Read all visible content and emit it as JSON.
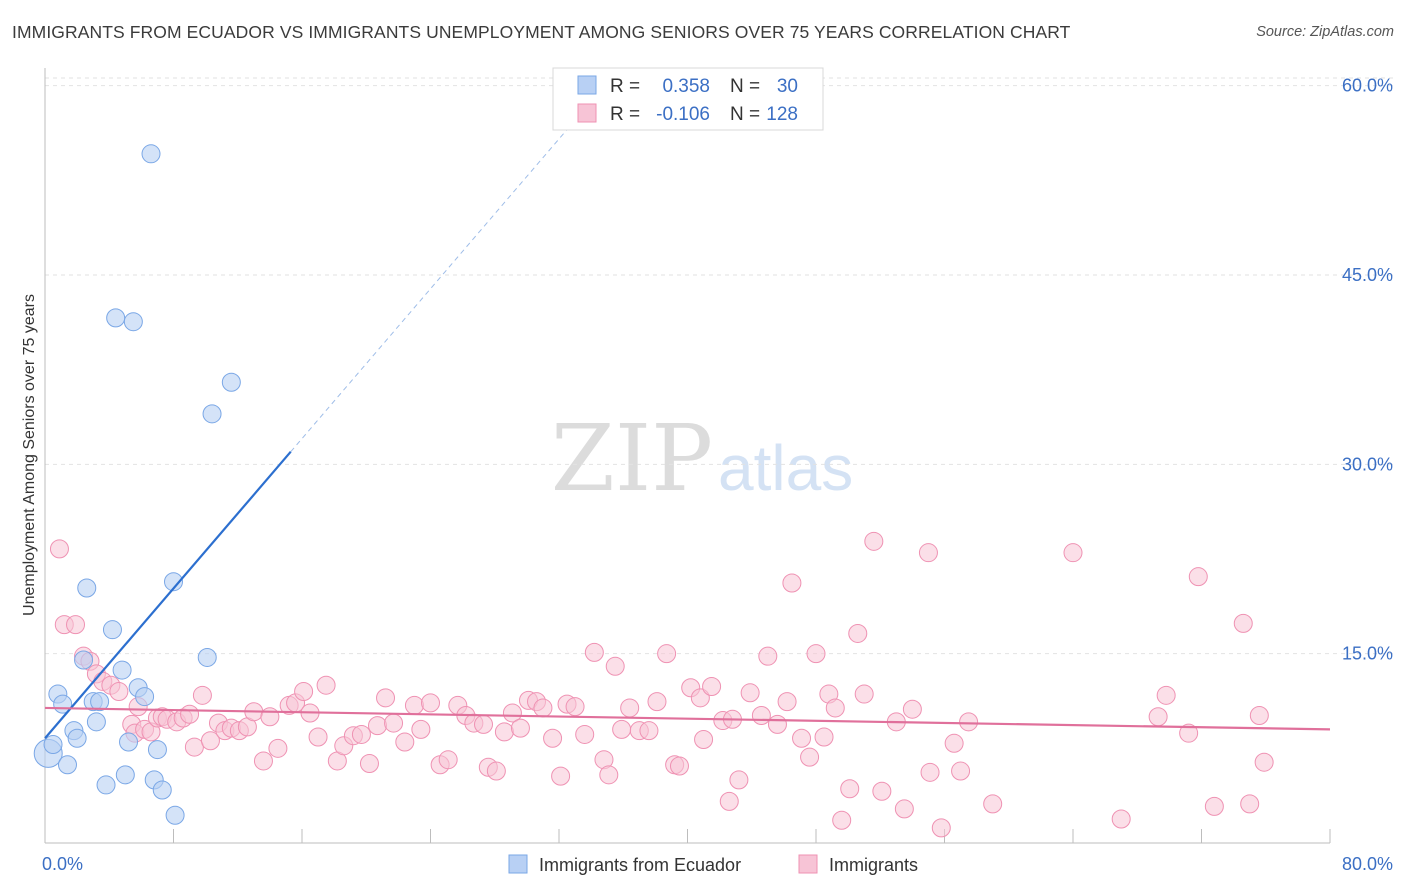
{
  "header": {
    "title": "IMMIGRANTS FROM ECUADOR VS IMMIGRANTS UNEMPLOYMENT AMONG SENIORS OVER 75 YEARS CORRELATION CHART",
    "source": "Source: ZipAtlas.com"
  },
  "watermark": {
    "zip": "ZIP",
    "atlas": "atlas"
  },
  "colors": {
    "blue_fill": "#b8d0f4",
    "blue_stroke": "#7aa7e6",
    "blue_line": "#2c6fcf",
    "pink_fill": "#f7c4d6",
    "pink_stroke": "#ef92b3",
    "pink_line": "#e0709b",
    "tick_text": "#3b6fc4",
    "grid": "#e2e2e2"
  },
  "stats_box": {
    "rows": [
      {
        "r_label": "R =",
        "r_value": "0.358",
        "n_label": "N =",
        "n_value": "30"
      },
      {
        "r_label": "R =",
        "r_value": "-0.106",
        "n_label": "N =",
        "n_value": "128"
      }
    ]
  },
  "chart_data": {
    "type": "scatter",
    "title": "IMMIGRANTS FROM ECUADOR VS IMMIGRANTS UNEMPLOYMENT AMONG SENIORS OVER 75 YEARS CORRELATION CHART",
    "xlabel": "",
    "ylabel": "Unemployment Among Seniors over 75 years",
    "xlim": [
      0,
      80
    ],
    "ylim": [
      0,
      60
    ],
    "x_tick_labels": {
      "min": "0.0%",
      "max": "80.0%"
    },
    "y_ticks": [
      15,
      30,
      45,
      60
    ],
    "y_tick_labels": [
      "15.0%",
      "30.0%",
      "45.0%",
      "60.0%"
    ],
    "legend": {
      "position": "bottom-center",
      "entries": [
        "Immigrants from Ecuador",
        "Immigrants"
      ]
    },
    "series": [
      {
        "name": "Immigrants from Ecuador",
        "trend": {
          "x0": 0,
          "y0": 8.3,
          "x1": 15.3,
          "y1": 31.0,
          "dash_to_x": 33,
          "r": 0.358,
          "n": 30
        },
        "points": [
          [
            0.2,
            7.1
          ],
          [
            0.5,
            7.8
          ],
          [
            0.8,
            11.8
          ],
          [
            1.1,
            11.0
          ],
          [
            1.4,
            6.2
          ],
          [
            1.8,
            8.9
          ],
          [
            2.0,
            8.3
          ],
          [
            2.4,
            14.5
          ],
          [
            2.6,
            20.2
          ],
          [
            3.0,
            11.2
          ],
          [
            3.2,
            9.6
          ],
          [
            3.4,
            11.2
          ],
          [
            3.8,
            4.6
          ],
          [
            4.2,
            16.9
          ],
          [
            4.4,
            41.6
          ],
          [
            4.8,
            13.7
          ],
          [
            5.0,
            5.4
          ],
          [
            5.2,
            8.0
          ],
          [
            5.5,
            41.3
          ],
          [
            5.8,
            12.3
          ],
          [
            6.2,
            11.6
          ],
          [
            6.6,
            54.6
          ],
          [
            6.8,
            5.0
          ],
          [
            7.0,
            7.4
          ],
          [
            7.3,
            4.2
          ],
          [
            8.0,
            20.7
          ],
          [
            8.1,
            2.2
          ],
          [
            10.1,
            14.7
          ],
          [
            10.4,
            34.0
          ],
          [
            11.6,
            36.5
          ]
        ]
      },
      {
        "name": "Immigrants",
        "trend": {
          "x0": 0,
          "y0": 10.7,
          "x1": 80,
          "y1": 9.0,
          "r": -0.106,
          "n": 128
        },
        "points": [
          [
            0.9,
            23.3
          ],
          [
            1.2,
            17.3
          ],
          [
            1.9,
            17.3
          ],
          [
            2.4,
            14.8
          ],
          [
            2.8,
            14.4
          ],
          [
            3.2,
            13.4
          ],
          [
            3.6,
            12.8
          ],
          [
            4.1,
            12.5
          ],
          [
            4.6,
            12.0
          ],
          [
            5.4,
            9.4
          ],
          [
            5.6,
            8.7
          ],
          [
            5.8,
            10.8
          ],
          [
            6.2,
            9.0
          ],
          [
            6.6,
            8.8
          ],
          [
            7.0,
            9.9
          ],
          [
            7.3,
            10.0
          ],
          [
            7.6,
            9.8
          ],
          [
            8.2,
            9.6
          ],
          [
            8.6,
            9.9
          ],
          [
            9.0,
            10.2
          ],
          [
            9.3,
            7.6
          ],
          [
            9.8,
            11.7
          ],
          [
            10.3,
            8.1
          ],
          [
            10.8,
            9.5
          ],
          [
            11.2,
            8.9
          ],
          [
            11.6,
            9.1
          ],
          [
            12.1,
            8.9
          ],
          [
            12.6,
            9.2
          ],
          [
            13.0,
            10.4
          ],
          [
            13.6,
            6.5
          ],
          [
            14.0,
            10.0
          ],
          [
            14.5,
            7.5
          ],
          [
            15.2,
            10.9
          ],
          [
            15.6,
            11.1
          ],
          [
            16.1,
            12.0
          ],
          [
            16.5,
            10.3
          ],
          [
            17.0,
            8.4
          ],
          [
            17.5,
            12.5
          ],
          [
            18.2,
            6.5
          ],
          [
            18.6,
            7.7
          ],
          [
            19.2,
            8.5
          ],
          [
            19.7,
            8.6
          ],
          [
            20.2,
            6.3
          ],
          [
            20.7,
            9.3
          ],
          [
            21.2,
            11.5
          ],
          [
            21.7,
            9.5
          ],
          [
            22.4,
            8.0
          ],
          [
            23.0,
            10.9
          ],
          [
            23.4,
            9.0
          ],
          [
            24.0,
            11.1
          ],
          [
            24.6,
            6.2
          ],
          [
            25.1,
            6.6
          ],
          [
            25.7,
            10.9
          ],
          [
            26.2,
            10.1
          ],
          [
            26.7,
            9.5
          ],
          [
            27.3,
            9.4
          ],
          [
            27.6,
            6.0
          ],
          [
            28.1,
            5.7
          ],
          [
            28.6,
            8.8
          ],
          [
            29.1,
            10.3
          ],
          [
            29.6,
            9.1
          ],
          [
            30.1,
            11.3
          ],
          [
            30.6,
            11.2
          ],
          [
            31.0,
            10.7
          ],
          [
            31.6,
            8.3
          ],
          [
            32.1,
            5.3
          ],
          [
            32.5,
            11.0
          ],
          [
            33.0,
            10.8
          ],
          [
            33.6,
            8.6
          ],
          [
            34.2,
            15.1
          ],
          [
            34.8,
            6.6
          ],
          [
            35.1,
            5.4
          ],
          [
            35.5,
            14.0
          ],
          [
            35.9,
            9.0
          ],
          [
            36.4,
            10.7
          ],
          [
            37.0,
            8.9
          ],
          [
            37.6,
            8.9
          ],
          [
            38.1,
            11.2
          ],
          [
            38.7,
            15.0
          ],
          [
            39.2,
            6.2
          ],
          [
            39.5,
            6.1
          ],
          [
            40.2,
            12.3
          ],
          [
            40.8,
            11.5
          ],
          [
            41.0,
            8.2
          ],
          [
            41.5,
            12.4
          ],
          [
            42.2,
            9.7
          ],
          [
            42.6,
            3.3
          ],
          [
            42.8,
            9.8
          ],
          [
            43.2,
            5.0
          ],
          [
            43.9,
            11.9
          ],
          [
            44.6,
            10.1
          ],
          [
            45.0,
            14.8
          ],
          [
            45.6,
            9.4
          ],
          [
            46.2,
            11.2
          ],
          [
            46.5,
            20.6
          ],
          [
            47.1,
            8.3
          ],
          [
            47.6,
            6.8
          ],
          [
            48.0,
            15.0
          ],
          [
            48.5,
            8.4
          ],
          [
            48.8,
            11.8
          ],
          [
            49.2,
            10.7
          ],
          [
            49.6,
            1.8
          ],
          [
            50.1,
            4.3
          ],
          [
            50.6,
            16.6
          ],
          [
            51.0,
            11.8
          ],
          [
            51.6,
            23.9
          ],
          [
            52.1,
            4.1
          ],
          [
            53.0,
            9.6
          ],
          [
            53.5,
            2.7
          ],
          [
            54.0,
            10.6
          ],
          [
            55.0,
            23.0
          ],
          [
            55.1,
            5.6
          ],
          [
            55.8,
            1.2
          ],
          [
            56.6,
            7.9
          ],
          [
            57.0,
            5.7
          ],
          [
            57.5,
            9.6
          ],
          [
            59.0,
            3.1
          ],
          [
            64.0,
            23.0
          ],
          [
            67.0,
            1.9
          ],
          [
            69.3,
            10.0
          ],
          [
            69.8,
            11.7
          ],
          [
            71.2,
            8.7
          ],
          [
            71.8,
            21.1
          ],
          [
            72.8,
            2.9
          ],
          [
            74.6,
            17.4
          ],
          [
            75.0,
            3.1
          ],
          [
            75.6,
            10.1
          ],
          [
            75.9,
            6.4
          ]
        ]
      }
    ]
  }
}
